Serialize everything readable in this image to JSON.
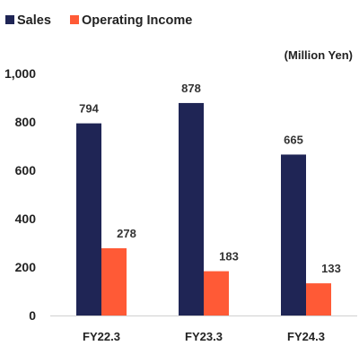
{
  "chart_data": {
    "type": "bar",
    "unit_label": "(Million Yen)",
    "categories": [
      "FY22.3",
      "FY23.3",
      "FY24.3"
    ],
    "series": [
      {
        "name": "Sales",
        "values": [
          794,
          878,
          665
        ],
        "color": "#1f2555"
      },
      {
        "name": "Operating Income",
        "values": [
          278,
          183,
          133
        ],
        "color": "#ff5a36"
      }
    ],
    "ylim": [
      0,
      1000
    ],
    "yticks": [
      0,
      200,
      400,
      600,
      800,
      1000
    ],
    "ytick_labels": [
      "0",
      "200",
      "400",
      "600",
      "800",
      "1,000"
    ],
    "grid": false,
    "legend_position": "top-left"
  }
}
